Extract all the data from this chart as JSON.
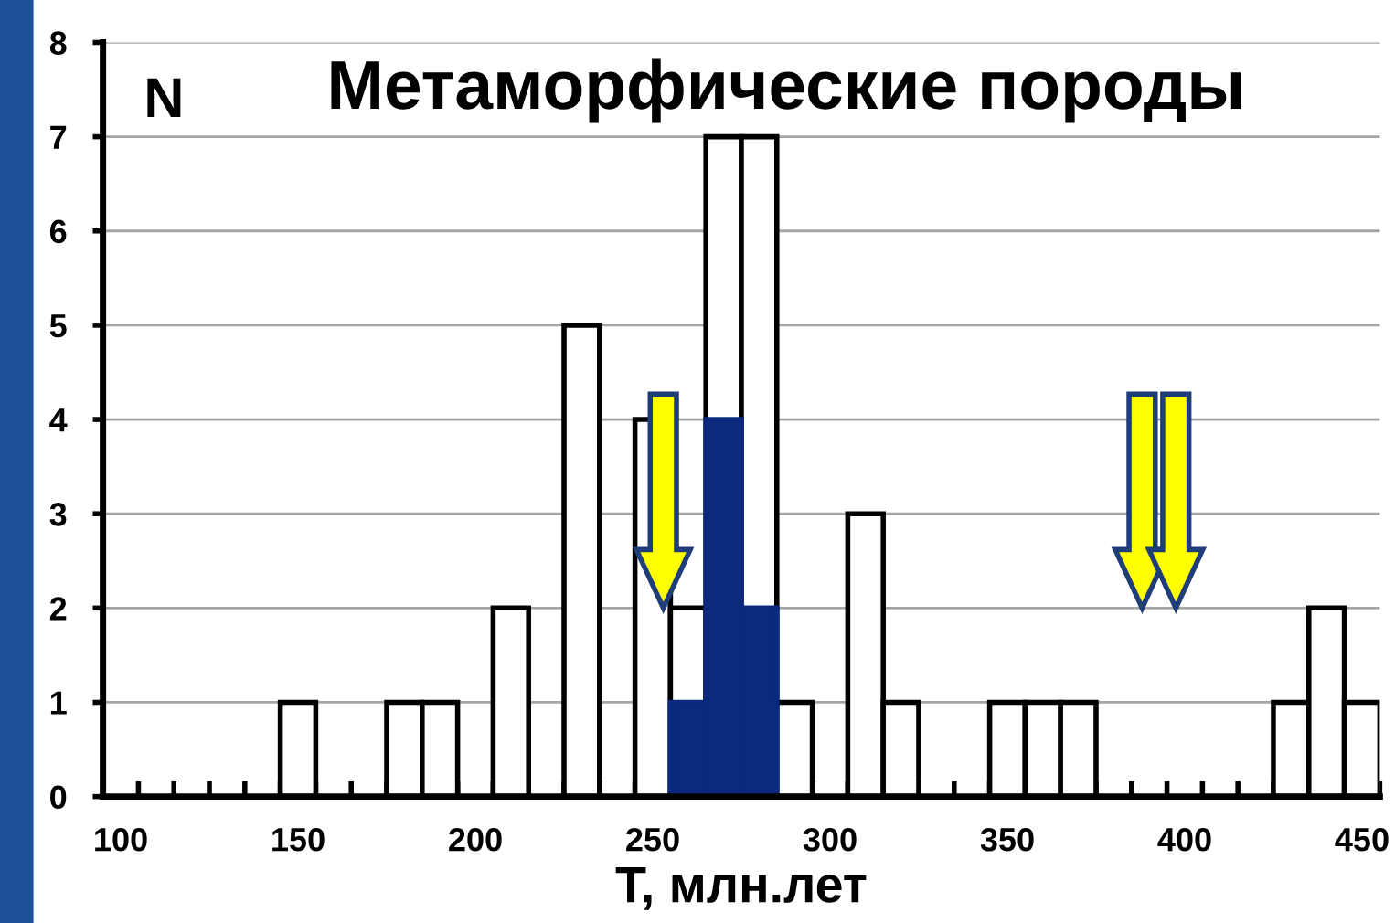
{
  "chart_data": {
    "type": "histogram",
    "title": "Метаморфические породы",
    "ylabel": "N",
    "xlabel": "T, млн.лет",
    "bins": [
      95,
      105,
      115,
      125,
      135,
      145,
      155,
      165,
      175,
      185,
      195,
      205,
      215,
      225,
      235,
      245,
      255,
      265,
      275,
      285,
      295,
      305,
      315,
      325,
      335,
      345,
      355,
      365,
      375,
      385,
      395,
      405,
      415,
      425,
      435,
      445,
      455
    ],
    "series": [
      {
        "color": "#ffffff",
        "values": [
          0,
          0,
          0,
          0,
          0,
          1,
          0,
          0,
          1,
          1,
          0,
          2,
          0,
          5,
          0,
          4,
          2,
          7,
          7,
          1,
          0,
          3,
          1,
          0,
          0,
          1,
          1,
          1,
          0,
          0,
          0,
          0,
          0,
          1,
          2,
          1
        ]
      },
      {
        "color": "#0b2a7e",
        "values": [
          0,
          0,
          0,
          0,
          0,
          0,
          0,
          0,
          0,
          0,
          0,
          0,
          0,
          0,
          0,
          0,
          1,
          4,
          2,
          0,
          0,
          0,
          0,
          0,
          0,
          0,
          0,
          0,
          0,
          0,
          0,
          0,
          0,
          0,
          0,
          0
        ]
      }
    ],
    "xlim": [
      95,
      455
    ],
    "xticks": [
      100,
      150,
      200,
      250,
      300,
      350,
      400,
      450
    ],
    "ylim": [
      0,
      8
    ],
    "yticks": [
      0,
      1,
      2,
      3,
      4,
      5,
      6,
      7,
      8
    ],
    "grid": "y",
    "legend": false
  }
}
